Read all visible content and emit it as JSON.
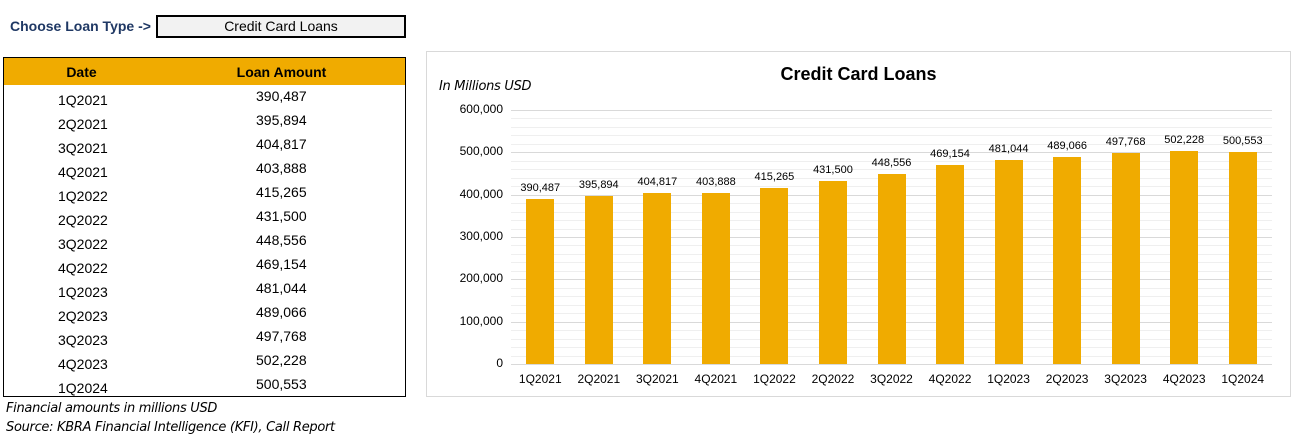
{
  "selector": {
    "label": "Choose Loan Type ->",
    "value": "Credit Card Loans"
  },
  "table": {
    "headers": {
      "date": "Date",
      "amount": "Loan Amount"
    },
    "rows": [
      {
        "date": "1Q2021",
        "amount": "390,487"
      },
      {
        "date": "2Q2021",
        "amount": "395,894"
      },
      {
        "date": "3Q2021",
        "amount": "404,817"
      },
      {
        "date": "4Q2021",
        "amount": "403,888"
      },
      {
        "date": "1Q2022",
        "amount": "415,265"
      },
      {
        "date": "2Q2022",
        "amount": "431,500"
      },
      {
        "date": "3Q2022",
        "amount": "448,556"
      },
      {
        "date": "4Q2022",
        "amount": "469,154"
      },
      {
        "date": "1Q2023",
        "amount": "481,044"
      },
      {
        "date": "2Q2023",
        "amount": "489,066"
      },
      {
        "date": "3Q2023",
        "amount": "497,768"
      },
      {
        "date": "4Q2023",
        "amount": "502,228"
      },
      {
        "date": "1Q2024",
        "amount": "500,553"
      }
    ]
  },
  "footnotes": {
    "units": "Financial amounts in millions USD",
    "source": "Source: KBRA Financial Intelligence (KFI), Call Report"
  },
  "colors": {
    "bar": "#F0AB00",
    "header_bg": "#F0AB00",
    "selector_label": "#1F3864",
    "selector_bg": "#F2F2F2"
  },
  "chart_data": {
    "type": "bar",
    "title": "Credit Card Loans",
    "subtitle": "In Millions USD",
    "xlabel": "",
    "ylabel": "In Millions USD",
    "ylim": [
      0,
      600000
    ],
    "yticks": [
      "0",
      "100,000",
      "200,000",
      "300,000",
      "400,000",
      "500,000",
      "600,000"
    ],
    "grid": true,
    "legend": null,
    "categories": [
      "1Q2021",
      "2Q2021",
      "3Q2021",
      "4Q2021",
      "1Q2022",
      "2Q2022",
      "3Q2022",
      "4Q2022",
      "1Q2023",
      "2Q2023",
      "3Q2023",
      "4Q2023",
      "1Q2024"
    ],
    "values": [
      390487,
      395894,
      404817,
      403888,
      415265,
      431500,
      448556,
      469154,
      481044,
      489066,
      497768,
      502228,
      500553
    ],
    "data_labels": [
      "390,487",
      "395,894",
      "404,817",
      "403,888",
      "415,265",
      "431,500",
      "448,556",
      "469,154",
      "481,044",
      "489,066",
      "497,768",
      "502,228",
      "500,553"
    ]
  }
}
